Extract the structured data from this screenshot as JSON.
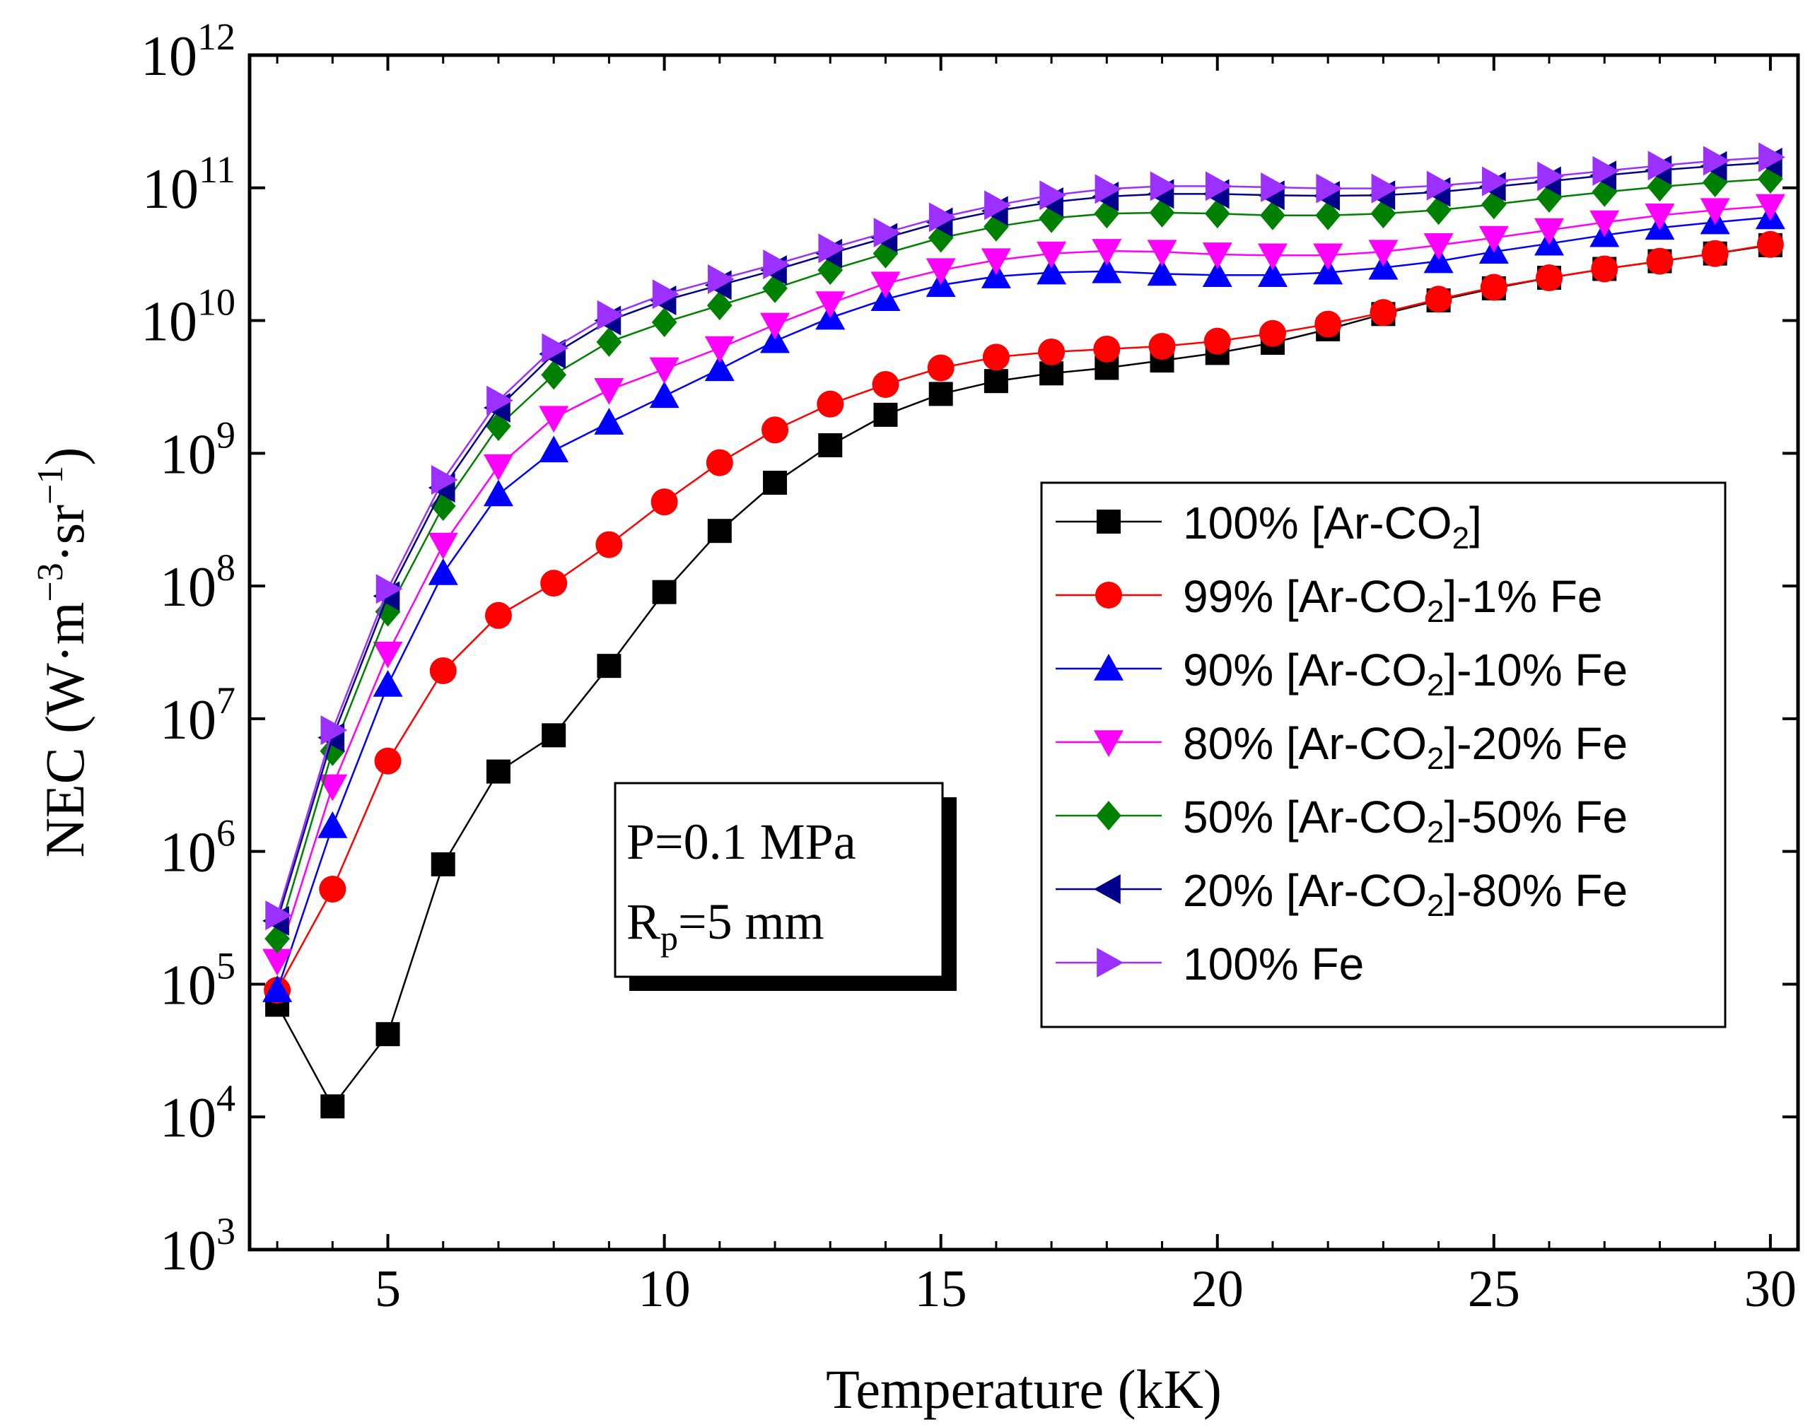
{
  "chart_data": {
    "type": "line",
    "scale_y": "log",
    "xlabel": "Temperature (kK)",
    "ylabel": {
      "main": "NEC (W·m",
      "sup1": "−3",
      "mid": "·sr",
      "sup2": "−1",
      "end": ")"
    },
    "xlim": [
      2.5,
      30.5
    ],
    "ylim_exp": [
      3,
      12
    ],
    "x_ticks": [
      5,
      10,
      15,
      20,
      25,
      30
    ],
    "x_tick_labels": [
      "5",
      "10",
      "15",
      "20",
      "25",
      "30"
    ],
    "y_ticks_exp": [
      3,
      4,
      5,
      6,
      7,
      8,
      9,
      10,
      11,
      12
    ],
    "y_tick_base": "10",
    "y_tick_exps": [
      "3",
      "4",
      "5",
      "6",
      "7",
      "8",
      "9",
      "10",
      "11",
      "12"
    ],
    "annotation": {
      "line1": "P=0.1 MPa",
      "line2_main": "R",
      "line2_sub": "p",
      "line2_rest": "=5 mm"
    },
    "x": [
      3,
      4,
      5,
      6,
      7,
      8,
      9,
      10,
      11,
      12,
      13,
      14,
      15,
      16,
      17,
      18,
      19,
      20,
      21,
      22,
      23,
      24,
      25,
      26,
      27,
      28,
      29,
      30
    ],
    "series": [
      {
        "name": "100% [Ar-CO2]",
        "label": {
          "pre": "100% [Ar-CO",
          "sub": "2",
          "post": "]"
        },
        "color": "#000000",
        "marker": "square",
        "values": [
          70000.0,
          12000.0,
          42000.0,
          800000.0,
          4000000.0,
          7500000.0,
          25000000.0,
          90000000.0,
          260000000.0,
          600000000.0,
          1150000000.0,
          1950000000.0,
          2800000000.0,
          3500000000.0,
          4000000000.0,
          4400000000.0,
          5000000000.0,
          5700000000.0,
          6800000000.0,
          8600000000.0,
          11200000000.0,
          14200000000.0,
          17500000000.0,
          21000000000.0,
          24500000000.0,
          28000000000.0,
          32000000000.0,
          37000000000.0
        ]
      },
      {
        "name": "99% [Ar-CO2]-1% Fe",
        "label": {
          "pre": "99% [Ar-CO",
          "sub": "2",
          "post": "]-1% Fe"
        },
        "color": "#ff0000",
        "marker": "circle",
        "values": [
          90000.0,
          520000.0,
          4800000.0,
          23000000.0,
          60000000.0,
          105000000.0,
          205000000.0,
          430000000.0,
          850000000.0,
          1500000000.0,
          2350000000.0,
          3300000000.0,
          4400000000.0,
          5300000000.0,
          5800000000.0,
          6100000000.0,
          6400000000.0,
          7000000000.0,
          8000000000.0,
          9400000000.0,
          11500000000.0,
          14500000000.0,
          17800000000.0,
          21000000000.0,
          24500000000.0,
          28000000000.0,
          32000000000.0,
          37500000000.0
        ]
      },
      {
        "name": "90% [Ar-CO2]-10% Fe",
        "label": {
          "pre": "90% [Ar-CO",
          "sub": "2",
          "post": "]-10% Fe"
        },
        "color": "#0000ff",
        "marker": "triangle-up",
        "values": [
          90000.0,
          1550000.0,
          18000000.0,
          125000000.0,
          490000000.0,
          1050000000.0,
          1700000000.0,
          2700000000.0,
          4300000000.0,
          7000000000.0,
          10500000000.0,
          14500000000.0,
          18500000000.0,
          21500000000.0,
          23000000000.0,
          23500000000.0,
          22500000000.0,
          22000000000.0,
          22000000000.0,
          23000000000.0,
          25000000000.0,
          28000000000.0,
          33000000000.0,
          38000000000.0,
          44000000000.0,
          50000000000.0,
          55000000000.0,
          60000000000.0
        ]
      },
      {
        "name": "80% [Ar-CO2]-20% Fe",
        "label": {
          "pre": "80% [Ar-CO",
          "sub": "2",
          "post": "]-20% Fe"
        },
        "color": "#ff00ff",
        "marker": "triangle-down",
        "values": [
          150000.0,
          3100000.0,
          31000000.0,
          205000000.0,
          800000000.0,
          1850000000.0,
          3000000000.0,
          4300000000.0,
          6200000000.0,
          9300000000.0,
          13500000000.0,
          19000000000.0,
          24000000000.0,
          28500000000.0,
          32000000000.0,
          33500000000.0,
          33000000000.0,
          31500000000.0,
          31000000000.0,
          31000000000.0,
          33000000000.0,
          37000000000.0,
          42000000000.0,
          48000000000.0,
          55000000000.0,
          62000000000.0,
          68000000000.0,
          73000000000.0
        ]
      },
      {
        "name": "50% [Ar-CO2]-50% Fe",
        "label": {
          "pre": "50% [Ar-CO",
          "sub": "2",
          "post": "]-50% Fe"
        },
        "color": "#008000",
        "marker": "diamond",
        "values": [
          220000.0,
          5700000.0,
          64000000.0,
          400000000.0,
          1600000000.0,
          3900000000.0,
          6900000000.0,
          9700000000.0,
          13000000000.0,
          17500000000.0,
          24000000000.0,
          32000000000.0,
          42000000000.0,
          51000000000.0,
          59000000000.0,
          64000000000.0,
          65000000000.0,
          64000000000.0,
          62000000000.0,
          62000000000.0,
          64000000000.0,
          68000000000.0,
          75000000000.0,
          84000000000.0,
          93000000000.0,
          102000000000.0,
          110000000000.0,
          117000000000.0
        ]
      },
      {
        "name": "20% [Ar-CO2]-80% Fe",
        "label": {
          "pre": "20% [Ar-CO",
          "sub": "2",
          "post": "]-80% Fe"
        },
        "color": "#00008b",
        "marker": "triangle-left",
        "values": [
          300000.0,
          7200000.0,
          84000000.0,
          550000000.0,
          2200000000.0,
          5600000000.0,
          10000000000.0,
          14200000000.0,
          18500000000.0,
          24000000000.0,
          32000000000.0,
          42000000000.0,
          55000000000.0,
          67000000000.0,
          78000000000.0,
          86000000000.0,
          90000000000.0,
          90000000000.0,
          88000000000.0,
          87000000000.0,
          88000000000.0,
          93000000000.0,
          102000000000.0,
          112000000000.0,
          124000000000.0,
          136000000000.0,
          146000000000.0,
          155000000000.0
        ]
      },
      {
        "name": "100% Fe",
        "label": {
          "pre": "100% Fe",
          "sub": "",
          "post": ""
        },
        "color": "#9b30ff",
        "marker": "triangle-right",
        "values": [
          330000.0,
          8200000.0,
          95000000.0,
          630000000.0,
          2500000000.0,
          6200000000.0,
          11000000000.0,
          15800000000.0,
          20500000000.0,
          26500000000.0,
          35000000000.0,
          46000000000.0,
          60000000000.0,
          74000000000.0,
          88000000000.0,
          98000000000.0,
          103000000000.0,
          103000000000.0,
          101000000000.0,
          99000000000.0,
          99000000000.0,
          104000000000.0,
          112000000000.0,
          122000000000.0,
          134000000000.0,
          147000000000.0,
          160000000000.0,
          170000000000.0
        ]
      }
    ],
    "legend_position": "right-center"
  }
}
